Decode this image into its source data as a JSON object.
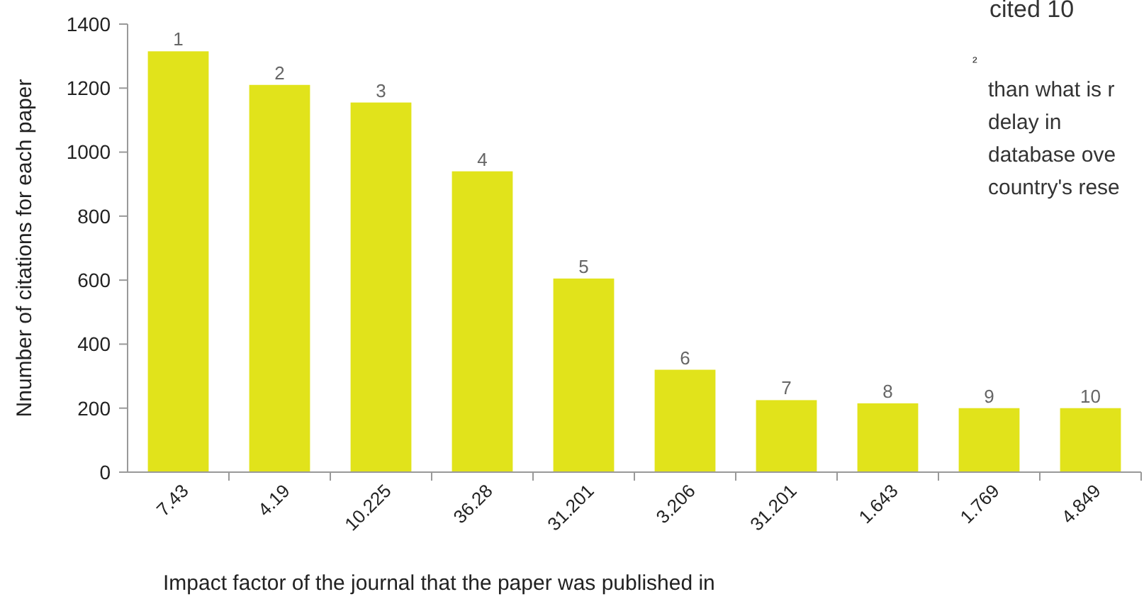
{
  "chart_data": {
    "type": "bar",
    "xlabel": "Impact factor of the journal that the paper was published in",
    "ylabel": "Nnumber of citations for each paper",
    "categories": [
      "7.43",
      "4.19",
      "10.225",
      "36.28",
      "31.201",
      "3.206",
      "31.201",
      "1.643",
      "1.769",
      "4.849"
    ],
    "values": [
      1315,
      1210,
      1155,
      940,
      605,
      320,
      225,
      215,
      200,
      200
    ],
    "color": "#e1e31b",
    "ylim": [
      0,
      1400
    ],
    "yticks": [
      0,
      200,
      400,
      600,
      800,
      1000,
      1200,
      1400
    ],
    "grid": false,
    "annotations": [
      "1",
      "2",
      "3",
      "4",
      "5",
      "6",
      "7",
      "8",
      "9",
      "10",
      "cited 10",
      "²",
      "than what is r",
      "delay in",
      "database ove",
      "country's rese"
    ]
  }
}
